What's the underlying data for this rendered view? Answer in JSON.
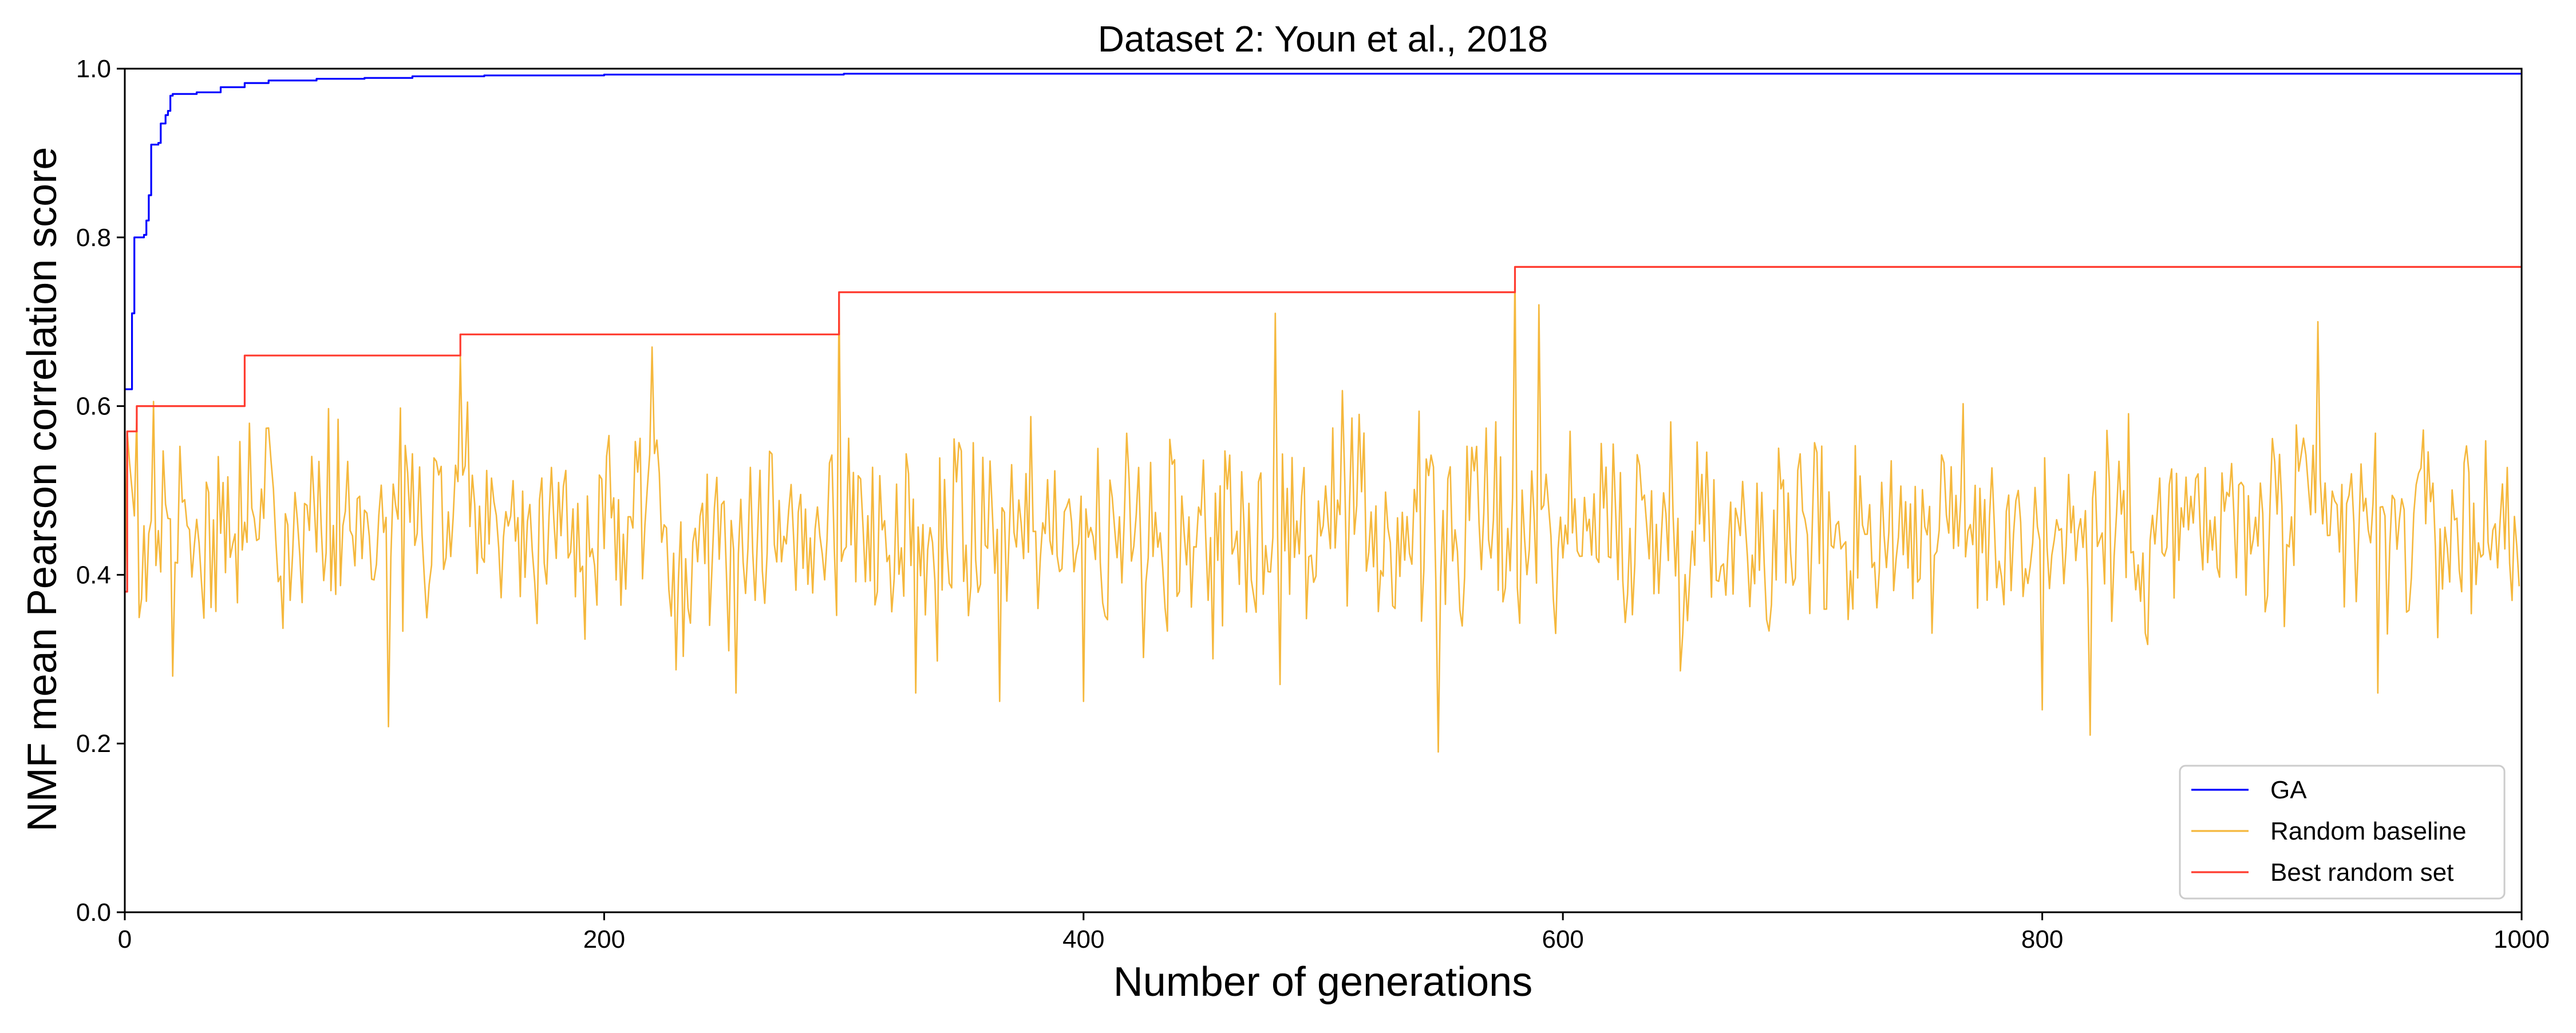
{
  "chart_data": {
    "type": "line",
    "title": "Dataset 2: Youn et al., 2018",
    "xlabel": "Number of generations",
    "ylabel": "NMF mean Pearson correlation score",
    "xlim": [
      0,
      1000
    ],
    "ylim": [
      0.0,
      1.0
    ],
    "xticks": [
      "0",
      "200",
      "400",
      "600",
      "800",
      "1000"
    ],
    "yticks": [
      "0.0",
      "0.2",
      "0.4",
      "0.6",
      "0.8",
      "1.0"
    ],
    "grid": false,
    "legend_position": "bottom-right",
    "series": [
      {
        "name": "GA",
        "color": "#0000ff",
        "shape": "step",
        "points": [
          [
            0,
            0.62
          ],
          [
            2,
            0.62
          ],
          [
            3,
            0.71
          ],
          [
            4,
            0.8
          ],
          [
            7,
            0.8
          ],
          [
            8,
            0.803
          ],
          [
            9,
            0.82
          ],
          [
            10,
            0.85
          ],
          [
            11,
            0.91
          ],
          [
            14,
            0.912
          ],
          [
            15,
            0.935
          ],
          [
            17,
            0.945
          ],
          [
            18,
            0.95
          ],
          [
            19,
            0.968
          ],
          [
            20,
            0.97
          ],
          [
            30,
            0.972
          ],
          [
            40,
            0.978
          ],
          [
            50,
            0.983
          ],
          [
            60,
            0.986
          ],
          [
            80,
            0.988
          ],
          [
            100,
            0.989
          ],
          [
            120,
            0.991
          ],
          [
            150,
            0.992
          ],
          [
            200,
            0.993
          ],
          [
            300,
            0.994
          ],
          [
            1000,
            0.995
          ]
        ]
      },
      {
        "name": "Random baseline",
        "color": "#f5b83d",
        "shape": "noisy",
        "n_points": 1000,
        "mean": 0.455,
        "spikes": [
          [
            0,
            0.38
          ],
          [
            1,
            0.57
          ],
          [
            5,
            0.59
          ],
          [
            20,
            0.28
          ],
          [
            110,
            0.22
          ],
          [
            140,
            0.66
          ],
          [
            220,
            0.67
          ],
          [
            255,
            0.26
          ],
          [
            298,
            0.73
          ],
          [
            330,
            0.26
          ],
          [
            365,
            0.25
          ],
          [
            400,
            0.25
          ],
          [
            480,
            0.71
          ],
          [
            482,
            0.27
          ],
          [
            548,
            0.19
          ],
          [
            580,
            0.76
          ],
          [
            590,
            0.72
          ],
          [
            800,
            0.24
          ],
          [
            820,
            0.21
          ],
          [
            915,
            0.7
          ],
          [
            940,
            0.26
          ]
        ]
      },
      {
        "name": "Best random set",
        "color": "#ff3b2f",
        "shape": "step",
        "points": [
          [
            0,
            0.38
          ],
          [
            1,
            0.57
          ],
          [
            5,
            0.6
          ],
          [
            50,
            0.66
          ],
          [
            140,
            0.685
          ],
          [
            298,
            0.735
          ],
          [
            580,
            0.765
          ],
          [
            1000,
            0.765
          ]
        ]
      }
    ]
  }
}
